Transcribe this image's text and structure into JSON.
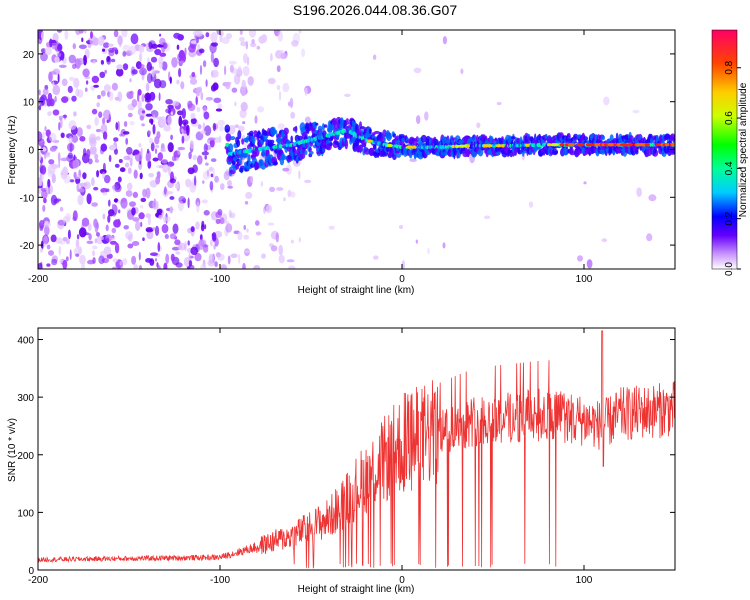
{
  "title": "S196.2026.044.08.36.G07",
  "colors": {
    "snr_line": "#ee3333",
    "axis": "#000000"
  },
  "chart_data": [
    {
      "type": "heatmap",
      "title": "S196.2026.044.08.36.G07",
      "xlabel": "Height of straight line (km)",
      "ylabel": "Frequency (Hz)",
      "xlim": [
        -200,
        150
      ],
      "ylim": [
        -25,
        25
      ],
      "xticks": [
        -200,
        -100,
        0,
        100
      ],
      "yticks": [
        -20,
        -10,
        0,
        10,
        20
      ],
      "ridge": {
        "description": "spectral ridge converging to ~1 Hz",
        "x": [
          -95,
          -80,
          -60,
          -40,
          -30,
          -20,
          -10,
          0,
          20,
          40,
          60,
          80,
          100,
          150
        ],
        "y": [
          -1,
          0,
          1,
          3,
          4,
          2,
          1,
          0.5,
          0.5,
          0.8,
          0.8,
          1,
          1,
          1
        ]
      },
      "colorbar": {
        "label": "Normalized spectral amplitude",
        "range": [
          0,
          0.95
        ],
        "ticks": [
          0.0,
          0.2,
          0.4,
          0.6,
          0.8
        ]
      }
    },
    {
      "type": "line",
      "xlabel": "Height of straight line (km)",
      "ylabel": "SNR (10 * v/v)",
      "xlim": [
        -200,
        150
      ],
      "ylim": [
        0,
        420
      ],
      "xticks": [
        -200,
        -100,
        0,
        100
      ],
      "yticks": [
        0,
        100,
        200,
        300,
        400
      ],
      "series": [
        {
          "name": "SNR",
          "x": [
            -200,
            -150,
            -100,
            -80,
            -60,
            -40,
            -20,
            0,
            20,
            40,
            60,
            80,
            100,
            110,
            120,
            150
          ],
          "y": [
            18,
            20,
            22,
            40,
            60,
            90,
            160,
            220,
            240,
            260,
            265,
            270,
            260,
            250,
            270,
            280
          ]
        }
      ]
    }
  ]
}
